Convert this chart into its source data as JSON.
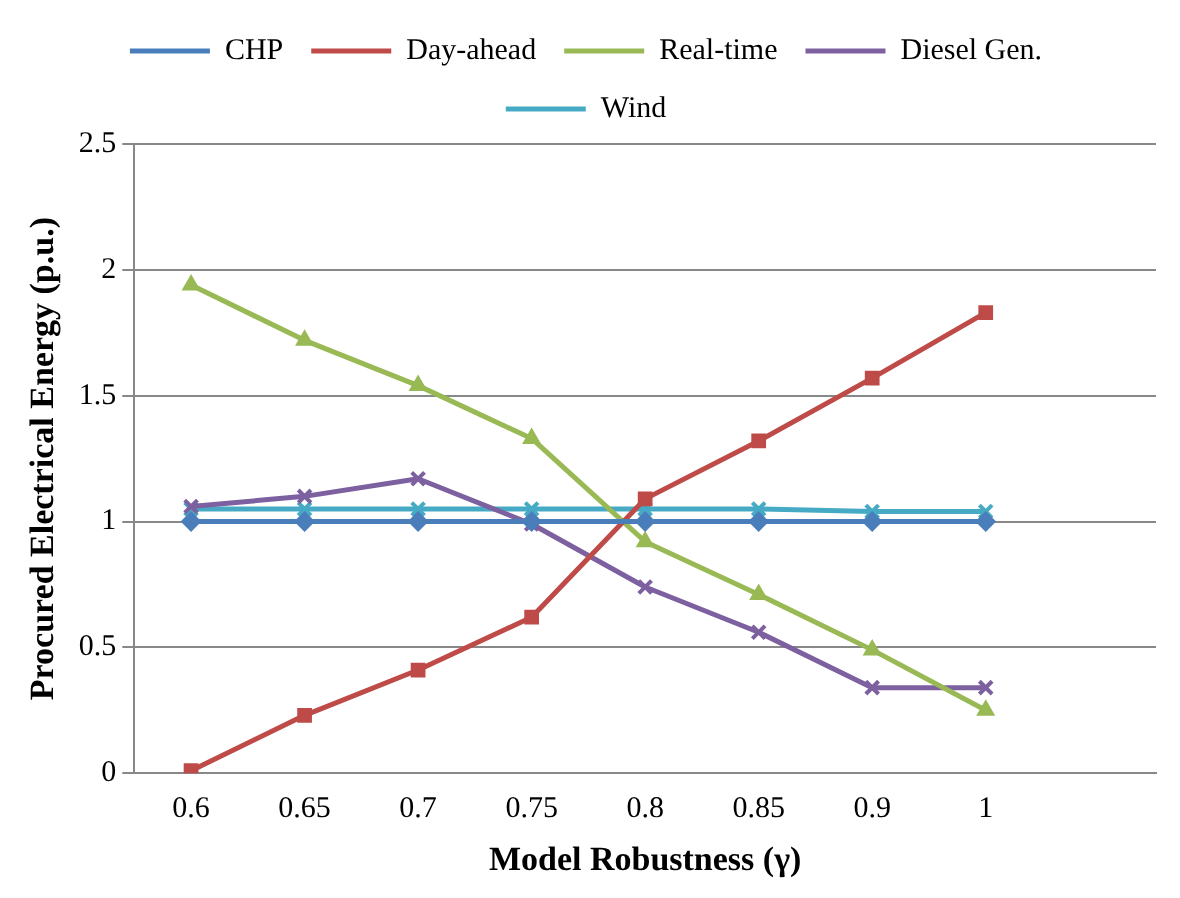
{
  "chart_data": {
    "type": "line",
    "xlabel": "Model Robustness (γ)",
    "ylabel": "Procured Electrical Energy (p.u.)",
    "categories": [
      "0.6",
      "0.65",
      "0.7",
      "0.75",
      "0.8",
      "0.85",
      "0.9",
      "1",
      null
    ],
    "series": [
      {
        "name": "CHP",
        "color": "#4a7ebb",
        "marker": "diamond",
        "values": [
          1.0,
          1.0,
          1.0,
          1.0,
          1.0,
          1.0,
          1.0,
          1.0,
          null
        ]
      },
      {
        "name": "Day-ahead",
        "color": "#be4b48",
        "marker": "square",
        "values": [
          0.01,
          0.23,
          0.41,
          0.62,
          1.09,
          1.32,
          1.57,
          1.83,
          null
        ]
      },
      {
        "name": "Real-time",
        "color": "#98b954",
        "marker": "triangle",
        "values": [
          1.94,
          1.72,
          1.54,
          1.33,
          0.92,
          0.71,
          0.49,
          0.25,
          null
        ]
      },
      {
        "name": "Diesel Gen.",
        "color": "#7d60a0",
        "marker": "cross",
        "values": [
          1.06,
          1.1,
          1.17,
          0.99,
          0.74,
          0.56,
          0.34,
          0.34,
          null
        ]
      },
      {
        "name": "Wind",
        "color": "#46aac5",
        "marker": "cross",
        "values": [
          1.05,
          1.05,
          1.05,
          1.05,
          1.05,
          1.05,
          1.04,
          1.04,
          null
        ]
      }
    ],
    "ylim": [
      0,
      2.5
    ],
    "yticks": [
      0,
      0.5,
      1,
      1.5,
      2,
      2.5
    ],
    "grid": "y",
    "legend": "top"
  }
}
